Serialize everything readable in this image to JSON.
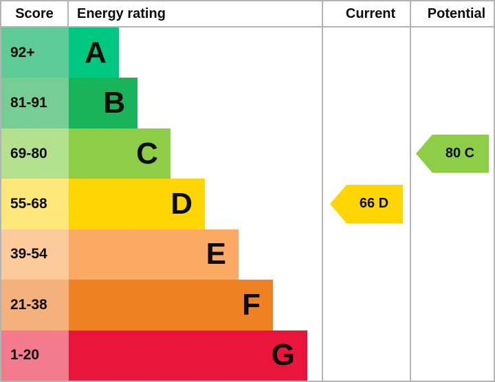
{
  "header": {
    "score_label": "Score",
    "energy_rating_label": "Energy rating",
    "current_label": "Current",
    "potential_label": "Potential"
  },
  "colors": {
    "grid_line": "#b1b4b6",
    "text": "#0b0c0c",
    "background": "#ffffff"
  },
  "chart_data": {
    "type": "bar",
    "orientation": "horizontal",
    "title": "Energy rating",
    "columns": [
      "Score",
      "Energy rating",
      "Current",
      "Potential"
    ],
    "bands": [
      {
        "letter": "A",
        "score": "92+",
        "score_min": 92,
        "score_max": null,
        "bar_color": "#00c781",
        "tint_color": "#5ecb97",
        "width": "19.8%"
      },
      {
        "letter": "B",
        "score": "81-91",
        "score_min": 81,
        "score_max": 91,
        "bar_color": "#19b459",
        "tint_color": "#77ce94",
        "width": "27.2%"
      },
      {
        "letter": "C",
        "score": "69-80",
        "score_min": 69,
        "score_max": 80,
        "bar_color": "#8dce46",
        "tint_color": "#b3e08d",
        "width": "40.2%"
      },
      {
        "letter": "D",
        "score": "55-68",
        "score_min": 55,
        "score_max": 68,
        "bar_color": "#ffd500",
        "tint_color": "#ffe87b",
        "width": "53.8%"
      },
      {
        "letter": "E",
        "score": "39-54",
        "score_min": 39,
        "score_max": 54,
        "bar_color": "#fbaa65",
        "tint_color": "#fdca9c",
        "width": "67.1%"
      },
      {
        "letter": "F",
        "score": "21-38",
        "score_min": 21,
        "score_max": 38,
        "bar_color": "#ee8122",
        "tint_color": "#f4b17c",
        "width": "80.7%"
      },
      {
        "letter": "G",
        "score": "1-20",
        "score_min": 1,
        "score_max": 20,
        "bar_color": "#e9153b",
        "tint_color": "#f37b8d",
        "width": "94.3%"
      }
    ],
    "current": {
      "label": "66 D",
      "value": 66,
      "band": "D",
      "color": "#ffd500"
    },
    "potential": {
      "label": "80 C",
      "value": 80,
      "band": "C",
      "color": "#8dce46"
    }
  }
}
